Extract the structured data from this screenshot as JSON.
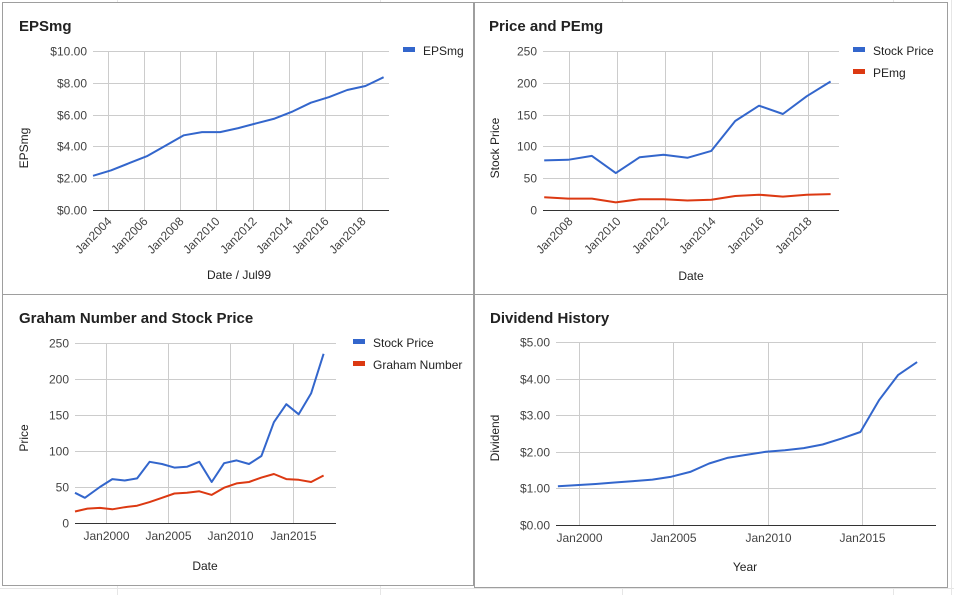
{
  "colors": {
    "blue": "#3366cc",
    "red": "#dc3912",
    "grid": "#cccccc",
    "axis": "#333333"
  },
  "chart_data": [
    {
      "id": "eps",
      "type": "line",
      "title": "EPSmg",
      "xlabel": "Date / Jul99",
      "ylabel": "EPSmg",
      "x_axis": "date",
      "xlim": [
        2003.2,
        2019.5
      ],
      "ylim": [
        0,
        10
      ],
      "y_ticks": [
        {
          "value": 0,
          "label": "$0.00"
        },
        {
          "value": 2,
          "label": "$2.00"
        },
        {
          "value": 4,
          "label": "$4.00"
        },
        {
          "value": 6,
          "label": "$6.00"
        },
        {
          "value": 8,
          "label": "$8.00"
        },
        {
          "value": 10,
          "label": "$10.00"
        }
      ],
      "x_ticks": [
        {
          "value": 2004,
          "label": "Jan2004"
        },
        {
          "value": 2006,
          "label": "Jan2006"
        },
        {
          "value": 2008,
          "label": "Jan2008"
        },
        {
          "value": 2010,
          "label": "Jan2010"
        },
        {
          "value": 2012,
          "label": "Jan2012"
        },
        {
          "value": 2014,
          "label": "Jan2014"
        },
        {
          "value": 2016,
          "label": "Jan2016"
        },
        {
          "value": 2018,
          "label": "Jan2018"
        }
      ],
      "x_tick_style": "rotated",
      "legend_position": "right",
      "series": [
        {
          "name": "EPSmg",
          "color": "#3366cc",
          "points": [
            [
              2003.2,
              2.15
            ],
            [
              2004.2,
              2.5
            ],
            [
              2005.2,
              2.95
            ],
            [
              2006.2,
              3.4
            ],
            [
              2007.2,
              4.05
            ],
            [
              2008.2,
              4.7
            ],
            [
              2009.2,
              4.9
            ],
            [
              2010.2,
              4.9
            ],
            [
              2011.2,
              5.15
            ],
            [
              2012.2,
              5.45
            ],
            [
              2013.2,
              5.75
            ],
            [
              2014.2,
              6.2
            ],
            [
              2015.2,
              6.75
            ],
            [
              2016.2,
              7.1
            ],
            [
              2017.2,
              7.55
            ],
            [
              2018.2,
              7.8
            ],
            [
              2019.2,
              8.35
            ]
          ]
        }
      ]
    },
    {
      "id": "price",
      "type": "line",
      "title": "Price and PEmg",
      "xlabel": "Date",
      "ylabel": "Stock Price",
      "x_axis": "date",
      "xlim": [
        2006.9,
        2019.3
      ],
      "ylim": [
        0,
        250
      ],
      "y_ticks": [
        {
          "value": 0,
          "label": "0"
        },
        {
          "value": 50,
          "label": "50"
        },
        {
          "value": 100,
          "label": "100"
        },
        {
          "value": 150,
          "label": "150"
        },
        {
          "value": 200,
          "label": "200"
        },
        {
          "value": 250,
          "label": "250"
        }
      ],
      "x_ticks": [
        {
          "value": 2008,
          "label": "Jan2008"
        },
        {
          "value": 2010,
          "label": "Jan2010"
        },
        {
          "value": 2012,
          "label": "Jan2012"
        },
        {
          "value": 2014,
          "label": "Jan2014"
        },
        {
          "value": 2016,
          "label": "Jan2016"
        },
        {
          "value": 2018,
          "label": "Jan2018"
        }
      ],
      "x_tick_style": "rotated",
      "legend_position": "right",
      "series": [
        {
          "name": "Stock Price",
          "color": "#3366cc",
          "points": [
            [
              2006.95,
              78
            ],
            [
              2007.95,
              79
            ],
            [
              2008.95,
              85
            ],
            [
              2009.95,
              58
            ],
            [
              2010.95,
              83
            ],
            [
              2011.95,
              87
            ],
            [
              2012.95,
              82
            ],
            [
              2013.95,
              93
            ],
            [
              2014.95,
              140
            ],
            [
              2015.95,
              164
            ],
            [
              2016.95,
              151
            ],
            [
              2017.95,
              179
            ],
            [
              2018.95,
              202
            ]
          ]
        },
        {
          "name": "PEmg",
          "color": "#dc3912",
          "points": [
            [
              2006.95,
              20
            ],
            [
              2007.95,
              18
            ],
            [
              2008.95,
              18
            ],
            [
              2009.95,
              12
            ],
            [
              2010.95,
              17
            ],
            [
              2011.95,
              17
            ],
            [
              2012.95,
              15
            ],
            [
              2013.95,
              16
            ],
            [
              2014.95,
              22
            ],
            [
              2015.95,
              24
            ],
            [
              2016.95,
              21
            ],
            [
              2017.95,
              24
            ],
            [
              2018.95,
              25
            ]
          ]
        }
      ]
    },
    {
      "id": "graham",
      "type": "line",
      "title": "Graham Number and Stock Price",
      "xlabel": "Date",
      "ylabel": "Price",
      "x_axis": "date",
      "xlim": [
        1997.5,
        2018.5
      ],
      "ylim": [
        0,
        250
      ],
      "y_ticks": [
        {
          "value": 0,
          "label": "0"
        },
        {
          "value": 50,
          "label": "50"
        },
        {
          "value": 100,
          "label": "100"
        },
        {
          "value": 150,
          "label": "150"
        },
        {
          "value": 200,
          "label": "200"
        },
        {
          "value": 250,
          "label": "250"
        }
      ],
      "x_ticks": [
        {
          "value": 2000,
          "label": "Jan2000"
        },
        {
          "value": 2005,
          "label": "Jan2005"
        },
        {
          "value": 2010,
          "label": "Jan2010"
        },
        {
          "value": 2015,
          "label": "Jan2015"
        }
      ],
      "x_tick_style": "horizontal",
      "legend_position": "right",
      "series": [
        {
          "name": "Stock Price",
          "color": "#3366cc",
          "points": [
            [
              1997.5,
              42
            ],
            [
              1998.3,
              35
            ],
            [
              1999.5,
              50
            ],
            [
              2000.5,
              61
            ],
            [
              2001.5,
              59
            ],
            [
              2002.5,
              62
            ],
            [
              2003.5,
              85
            ],
            [
              2004.5,
              82
            ],
            [
              2005.5,
              77
            ],
            [
              2006.5,
              78
            ],
            [
              2007.5,
              85
            ],
            [
              2008.5,
              57
            ],
            [
              2009.5,
              83
            ],
            [
              2010.5,
              87
            ],
            [
              2011.5,
              82
            ],
            [
              2012.5,
              93
            ],
            [
              2013.5,
              140
            ],
            [
              2014.5,
              165
            ],
            [
              2015.5,
              151
            ],
            [
              2016.5,
              180
            ],
            [
              2017.5,
              235
            ]
          ]
        },
        {
          "name": "Graham Number",
          "color": "#dc3912",
          "points": [
            [
              1997.5,
              16
            ],
            [
              1998.5,
              20
            ],
            [
              1999.5,
              21
            ],
            [
              2000.5,
              19
            ],
            [
              2001.5,
              22
            ],
            [
              2002.5,
              24
            ],
            [
              2003.5,
              29
            ],
            [
              2004.5,
              35
            ],
            [
              2005.5,
              41
            ],
            [
              2006.5,
              42
            ],
            [
              2007.5,
              44
            ],
            [
              2008.5,
              39
            ],
            [
              2009.5,
              49
            ],
            [
              2010.5,
              55
            ],
            [
              2011.5,
              57
            ],
            [
              2012.5,
              63
            ],
            [
              2013.5,
              68
            ],
            [
              2014.5,
              61
            ],
            [
              2015.5,
              60
            ],
            [
              2016.5,
              57
            ],
            [
              2017.5,
              66
            ]
          ]
        }
      ]
    },
    {
      "id": "div",
      "type": "line",
      "title": "Dividend History",
      "xlabel": "Year",
      "ylabel": "Dividend",
      "x_axis": "date",
      "xlim": [
        1998.8,
        2018.9
      ],
      "ylim": [
        0,
        5
      ],
      "y_ticks": [
        {
          "value": 0,
          "label": "$0.00"
        },
        {
          "value": 1,
          "label": "$1.00"
        },
        {
          "value": 2,
          "label": "$2.00"
        },
        {
          "value": 3,
          "label": "$3.00"
        },
        {
          "value": 4,
          "label": "$4.00"
        },
        {
          "value": 5,
          "label": "$5.00"
        }
      ],
      "x_ticks": [
        {
          "value": 2000,
          "label": "Jan2000"
        },
        {
          "value": 2005,
          "label": "Jan2005"
        },
        {
          "value": 2010,
          "label": "Jan2010"
        },
        {
          "value": 2015,
          "label": "Jan2015"
        }
      ],
      "x_tick_style": "horizontal",
      "legend_position": "none",
      "series": [
        {
          "name": "",
          "color": "#3366cc",
          "points": [
            [
              1998.9,
              1.06
            ],
            [
              1999.9,
              1.09
            ],
            [
              2000.9,
              1.12
            ],
            [
              2001.9,
              1.16
            ],
            [
              2002.9,
              1.2
            ],
            [
              2003.9,
              1.24
            ],
            [
              2004.9,
              1.32
            ],
            [
              2005.9,
              1.45
            ],
            [
              2006.9,
              1.68
            ],
            [
              2007.9,
              1.84
            ],
            [
              2008.9,
              1.92
            ],
            [
              2009.9,
              2.0
            ],
            [
              2010.9,
              2.04
            ],
            [
              2011.9,
              2.1
            ],
            [
              2012.9,
              2.2
            ],
            [
              2013.9,
              2.36
            ],
            [
              2014.9,
              2.54
            ],
            [
              2015.9,
              3.42
            ],
            [
              2016.9,
              4.1
            ],
            [
              2017.9,
              4.45
            ]
          ]
        }
      ]
    }
  ]
}
